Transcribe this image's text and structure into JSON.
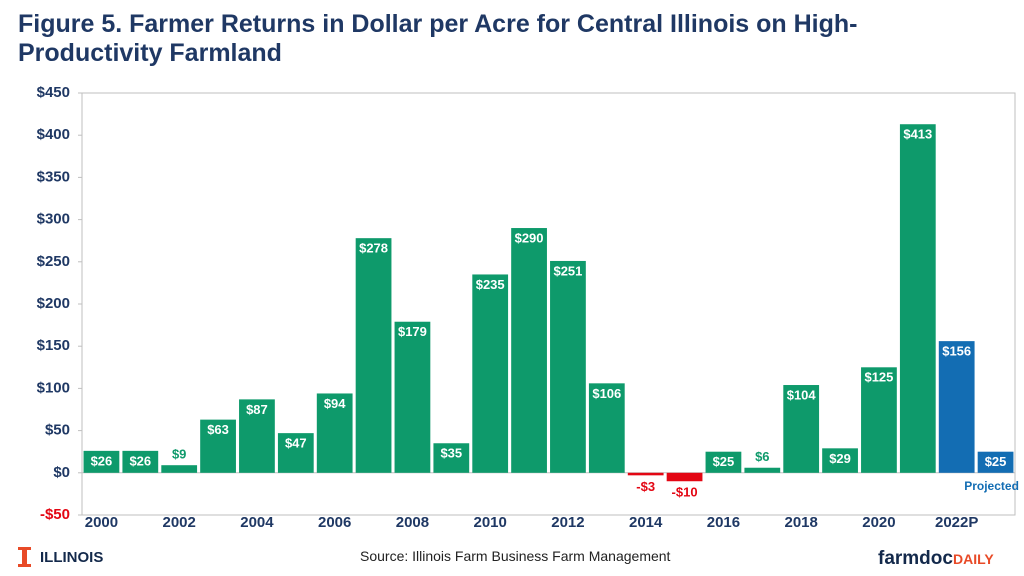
{
  "chart_data": {
    "type": "bar",
    "title": "Figure 5. Farmer Returns in Dollar per Acre for Central Illinois on High-Productivity Farmland",
    "categories": [
      "2000",
      null,
      "2002",
      null,
      "2004",
      null,
      "2006",
      null,
      "2008",
      null,
      "2010",
      null,
      "2012",
      null,
      "2014",
      null,
      "2016",
      null,
      "2018",
      null,
      "2020",
      null,
      "2022P",
      null
    ],
    "values": [
      26,
      26,
      9,
      63,
      87,
      47,
      94,
      278,
      179,
      35,
      235,
      290,
      251,
      106,
      -3,
      -10,
      25,
      6,
      104,
      29,
      125,
      413,
      156,
      25
    ],
    "value_labels": [
      "$26",
      "$26",
      "$9",
      "$63",
      "$87",
      "$47",
      "$94",
      "$278",
      "$179",
      "$35",
      "$235",
      "$290",
      "$251",
      "$106",
      "-$3",
      "-$10",
      "$25",
      "$6",
      "$104",
      "$29",
      "$125",
      "$413",
      "$156",
      "$25"
    ],
    "colors": [
      "#0e9a6b",
      "#0e9a6b",
      "#0e9a6b",
      "#0e9a6b",
      "#0e9a6b",
      "#0e9a6b",
      "#0e9a6b",
      "#0e9a6b",
      "#0e9a6b",
      "#0e9a6b",
      "#0e9a6b",
      "#0e9a6b",
      "#0e9a6b",
      "#0e9a6b",
      "#e30613",
      "#e30613",
      "#0e9a6b",
      "#0e9a6b",
      "#0e9a6b",
      "#0e9a6b",
      "#0e9a6b",
      "#0e9a6b",
      "#136db3",
      "#136db3"
    ],
    "annotation": "Projected",
    "ylim": [
      -50,
      450
    ],
    "yticks": [
      {
        "value": -50,
        "label": "-$50"
      },
      {
        "value": 0,
        "label": "$0"
      },
      {
        "value": 50,
        "label": "$50"
      },
      {
        "value": 100,
        "label": "$100"
      },
      {
        "value": 150,
        "label": "$150"
      },
      {
        "value": 200,
        "label": "$200"
      },
      {
        "value": 250,
        "label": "$250"
      },
      {
        "value": 300,
        "label": "$300"
      },
      {
        "value": 350,
        "label": "$350"
      },
      {
        "value": 400,
        "label": "$400"
      },
      {
        "value": 450,
        "label": "$450"
      }
    ],
    "grid": false
  },
  "footer": {
    "logo": "ILLINOIS",
    "source": "Source:  Illinois Farm Business Farm Management",
    "brand": "farmdoc",
    "brand_suffix": "DAILY"
  }
}
